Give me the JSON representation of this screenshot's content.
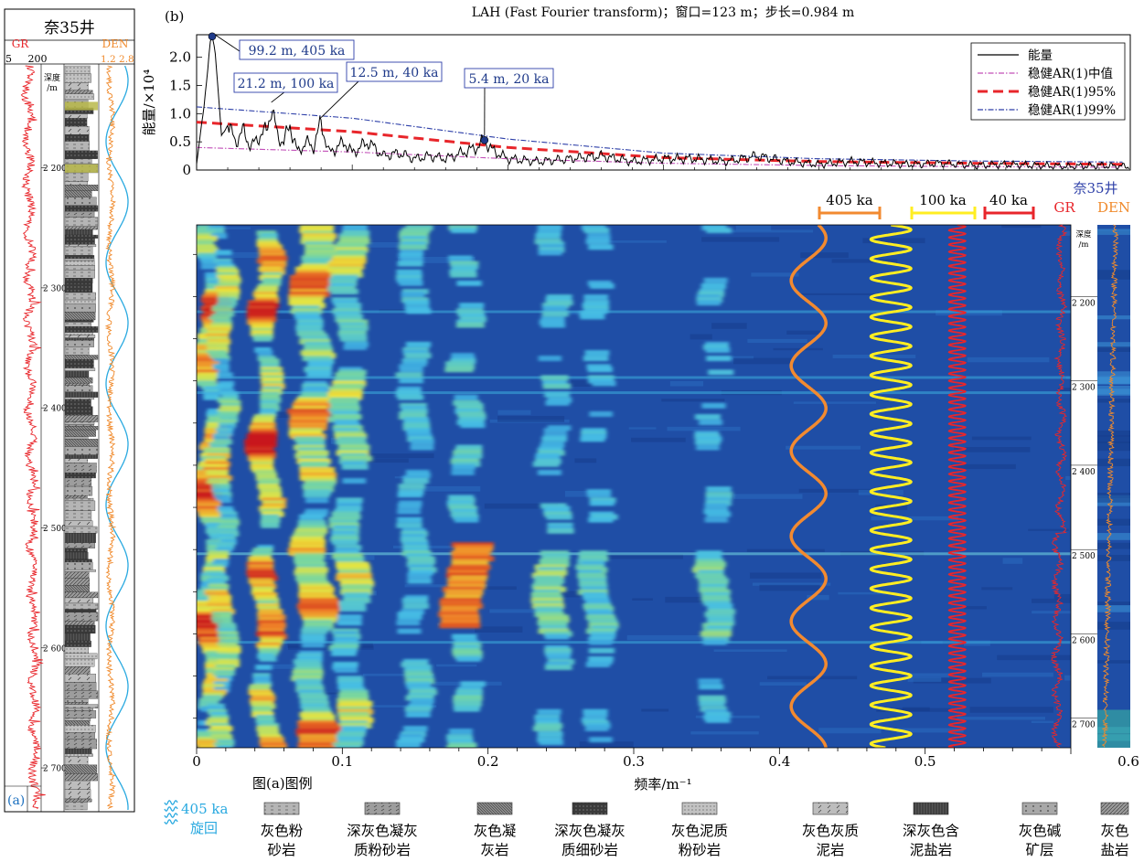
{
  "panel_a": {
    "panel_label": "(a)",
    "well_title": "奈35井",
    "gr_label": "GR",
    "gr_range": "5     200",
    "den_label": "DEN",
    "den_range": "1.2 2.8",
    "depth_label_1": "深度",
    "depth_label_2": "/m",
    "depth_ticks": [
      "2 200",
      "2 300",
      "2 400",
      "2 500",
      "2 600",
      "2 700"
    ],
    "depth_values": [
      2200,
      2300,
      2400,
      2500,
      2600,
      2700
    ],
    "depth_range": [
      2115,
      2735
    ],
    "colors": {
      "gr": "#e8262b",
      "den": "#f08a2c",
      "cycle": "#29a9e0"
    }
  },
  "panel_b": {
    "panel_label": "(b)",
    "title": "LAH (Fast Fourier transform)；窗口=123 m；步长=0.984 m",
    "ylabel": "能量/×10⁴",
    "legend": [
      "能量",
      "稳健AR(1)中值",
      "稳健AR(1)95%",
      "稳健AR(1)99%"
    ],
    "annotations": [
      {
        "text": "99.2 m, 405 ka",
        "f": 0.01,
        "p": 2.37
      },
      {
        "text": "21.2 m, 100 ka",
        "f": 0.048,
        "p": 1.12
      },
      {
        "text": "12.5 m, 40 ka",
        "f": 0.08,
        "p": 0.85
      },
      {
        "text": "5.4 m, 20 ka",
        "f": 0.185,
        "p": 0.53
      }
    ]
  },
  "chart_data": [
    {
      "type": "line",
      "title": "LAH (Fast Fourier transform)；窗口=123 m；步长=0.984 m",
      "xlabel": "",
      "ylabel": "能量/×10⁴",
      "xlim": [
        0,
        0.6
      ],
      "ylim": [
        0,
        2.4
      ],
      "yticks": [
        "0",
        "0.5",
        "1.0",
        "1.5",
        "2.0"
      ],
      "ytick_values": [
        0,
        0.5,
        1.0,
        1.5,
        2.0
      ],
      "series": [
        {
          "name": "能量",
          "x": [
            0.0,
            0.005,
            0.009,
            0.01,
            0.012,
            0.016,
            0.02,
            0.025,
            0.03,
            0.035,
            0.04,
            0.045,
            0.048,
            0.052,
            0.056,
            0.06,
            0.065,
            0.07,
            0.075,
            0.08,
            0.085,
            0.09,
            0.095,
            0.1,
            0.11,
            0.12,
            0.13,
            0.14,
            0.15,
            0.16,
            0.17,
            0.18,
            0.185,
            0.19,
            0.2,
            0.22,
            0.24,
            0.26,
            0.28,
            0.3,
            0.32,
            0.34,
            0.36,
            0.38,
            0.4,
            0.42,
            0.44,
            0.46,
            0.48,
            0.5,
            0.52,
            0.54,
            0.56,
            0.58,
            0.6
          ],
          "y": [
            0.1,
            1.2,
            2.3,
            2.37,
            2.1,
            0.6,
            0.8,
            0.5,
            0.7,
            0.4,
            0.6,
            0.7,
            1.12,
            0.6,
            0.5,
            0.8,
            0.3,
            0.5,
            0.4,
            0.85,
            0.3,
            0.4,
            0.5,
            0.3,
            0.5,
            0.25,
            0.3,
            0.2,
            0.25,
            0.2,
            0.3,
            0.4,
            0.53,
            0.35,
            0.2,
            0.15,
            0.2,
            0.25,
            0.15,
            0.2,
            0.2,
            0.15,
            0.25,
            0.15,
            0.1,
            0.15,
            0.12,
            0.1,
            0.12,
            0.08,
            0.1,
            0.08,
            0.06,
            0.08,
            0.06
          ]
        },
        {
          "name": "稳健AR(1)中值",
          "x": [
            0.0,
            0.1,
            0.2,
            0.3,
            0.4,
            0.5,
            0.6
          ],
          "y": [
            0.4,
            0.32,
            0.2,
            0.12,
            0.08,
            0.06,
            0.05
          ]
        },
        {
          "name": "稳健AR(1)95%",
          "x": [
            0.0,
            0.1,
            0.2,
            0.3,
            0.4,
            0.5,
            0.6
          ],
          "y": [
            0.85,
            0.68,
            0.4,
            0.22,
            0.15,
            0.12,
            0.1
          ]
        },
        {
          "name": "稳健AR(1)99%",
          "x": [
            0.0,
            0.1,
            0.2,
            0.3,
            0.4,
            0.5,
            0.6
          ],
          "y": [
            1.12,
            0.92,
            0.55,
            0.3,
            0.2,
            0.16,
            0.14
          ]
        }
      ],
      "legend_position": "top-right"
    },
    {
      "type": "heatmap",
      "xlabel": "频率/m⁻¹",
      "xlim": [
        0,
        0.6
      ],
      "xticks": [
        "0",
        "0.1",
        "0.2",
        "0.3",
        "0.4",
        "0.5",
        "0.6"
      ],
      "xtick_values": [
        0,
        0.1,
        0.2,
        0.3,
        0.4,
        0.5,
        0.6
      ],
      "ylim": [
        2115,
        2735
      ],
      "bands": [
        {
          "f": 0.01,
          "intensity": 1.0
        },
        {
          "f": 0.018,
          "intensity": 0.7
        },
        {
          "f": 0.048,
          "intensity": 1.0
        },
        {
          "f": 0.08,
          "intensity": 0.85
        },
        {
          "f": 0.105,
          "intensity": 0.6
        },
        {
          "f": 0.15,
          "intensity": 0.35
        },
        {
          "f": 0.185,
          "intensity": 0.8
        },
        {
          "f": 0.245,
          "intensity": 0.5
        },
        {
          "f": 0.275,
          "intensity": 0.4
        },
        {
          "f": 0.355,
          "intensity": 0.45
        }
      ],
      "cycle_labels": [
        "405 ka",
        "100 ka",
        "40 ka"
      ],
      "cycle_colors": [
        "#f28a30",
        "#ffee22",
        "#e8262b"
      ],
      "well_title": "奈35井",
      "gr_label": "GR",
      "den_label": "DEN",
      "depth_label_1": "深度",
      "depth_label_2": "/m",
      "depth_ticks": [
        "2 200",
        "2 300",
        "2 400",
        "2 500",
        "2 600",
        "2 700"
      ],
      "depth_values": [
        2200,
        2300,
        2400,
        2500,
        2600,
        2700
      ]
    }
  ],
  "legend_a": {
    "title": "图(a)图例",
    "cycle_label_1": "405 ka",
    "cycle_label_2": "旋回",
    "items": [
      {
        "l1": "灰色粉",
        "l2": "砂岩"
      },
      {
        "l1": "深灰色凝灰",
        "l2": "质粉砂岩"
      },
      {
        "l1": "灰色凝",
        "l2": "灰岩"
      },
      {
        "l1": "深灰色凝灰",
        "l2": "质细砂岩"
      },
      {
        "l1": "灰色泥质",
        "l2": "粉砂岩"
      },
      {
        "l1": "灰色灰质",
        "l2": "泥岩"
      },
      {
        "l1": "深灰色含",
        "l2": "泥盐岩"
      },
      {
        "l1": "灰色碱",
        "l2": "矿层"
      },
      {
        "l1": "灰色",
        "l2": "盐岩"
      }
    ]
  }
}
